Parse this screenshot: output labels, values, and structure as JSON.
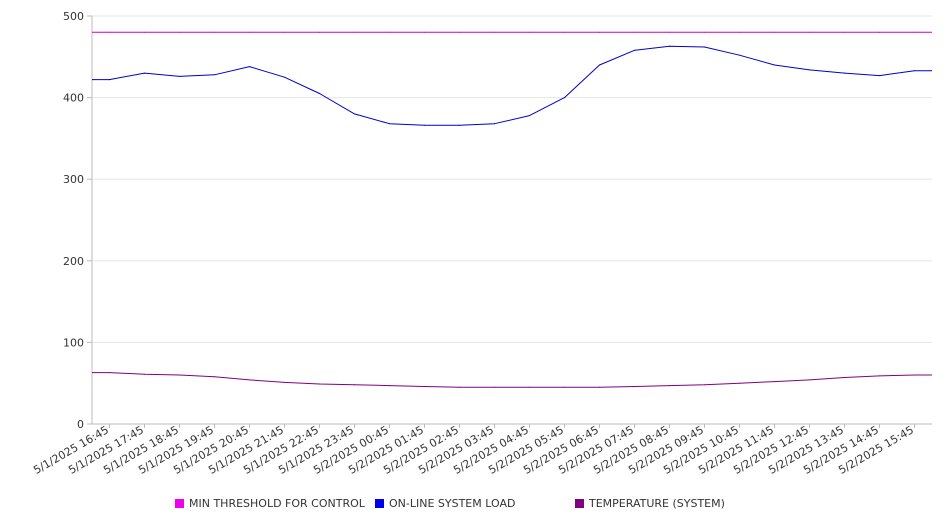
{
  "chart_data": {
    "type": "line",
    "title": "",
    "xlabel": "",
    "ylabel": "",
    "ylim": [
      0,
      500
    ],
    "yticks": [
      "0",
      "100",
      "200",
      "300",
      "400",
      "500"
    ],
    "grid": true,
    "legend_position": "bottom",
    "x": [
      "5/1/2025 16:45",
      "5/1/2025 17:45",
      "5/1/2025 18:45",
      "5/1/2025 19:45",
      "5/1/2025 20:45",
      "5/1/2025 21:45",
      "5/1/2025 22:45",
      "5/1/2025 23:45",
      "5/2/2025 00:45",
      "5/2/2025 01:45",
      "5/2/2025 02:45",
      "5/2/2025 03:45",
      "5/2/2025 04:45",
      "5/2/2025 05:45",
      "5/2/2025 06:45",
      "5/2/2025 07:45",
      "5/2/2025 08:45",
      "5/2/2025 09:45",
      "5/2/2025 10:45",
      "5/2/2025 11:45",
      "5/2/2025 12:45",
      "5/2/2025 13:45",
      "5/2/2025 14:45",
      "5/2/2025 15:45"
    ],
    "series": [
      {
        "name": "MIN THRESHOLD FOR CONTROL",
        "color": "#cc00cc",
        "values": [
          480,
          480,
          480,
          480,
          480,
          480,
          480,
          480,
          480,
          480,
          480,
          480,
          480,
          480,
          480,
          480,
          480,
          480,
          480,
          480,
          480,
          480,
          480,
          480
        ]
      },
      {
        "name": "ON-LINE SYSTEM LOAD",
        "color": "#0000cc",
        "values": [
          422,
          430,
          426,
          428,
          438,
          425,
          405,
          380,
          368,
          366,
          366,
          368,
          378,
          400,
          440,
          458,
          463,
          462,
          452,
          440,
          434,
          430,
          427,
          433
        ]
      },
      {
        "name": "TEMPERATURE (SYSTEM)",
        "color": "#800080",
        "values": [
          63,
          61,
          60,
          58,
          54,
          51,
          49,
          48,
          47,
          46,
          45,
          45,
          45,
          45,
          45,
          46,
          47,
          48,
          50,
          52,
          54,
          57,
          59,
          60
        ]
      }
    ]
  }
}
